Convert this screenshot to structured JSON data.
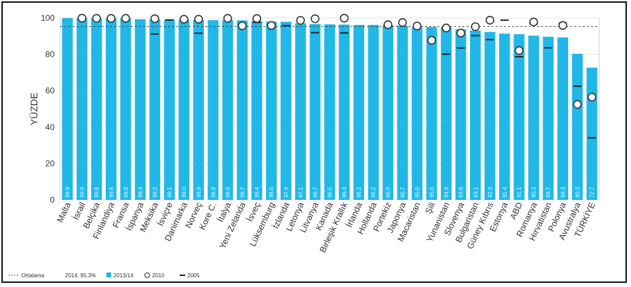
{
  "chart_data": {
    "type": "bar",
    "ylabel": "YÜZDE",
    "ylim": [
      0,
      100
    ],
    "yticks": [
      0,
      20,
      40,
      60,
      80,
      100
    ],
    "average_line": 95.3,
    "categories": [
      "Malta",
      "İsrail",
      "Belçika",
      "Finlandiya",
      "Fransa",
      "İspanya",
      "Meksika",
      "İsviçre",
      "Danimarka",
      "Norveç",
      "Kore C.",
      "İtalya",
      "Yeni Zelanda",
      "İsveç",
      "Lüksemburg",
      "İzlanda",
      "Letonya",
      "Litvanya",
      "Kanada",
      "Birleşik Krallık",
      "İrlanda",
      "Hollanda",
      "Portekiz",
      "Japonya",
      "Macaristan",
      "Şili",
      "Yunanistan",
      "Slovenya",
      "Bulgaristan",
      "Güney Kıbrıs",
      "Estonya",
      "ABD",
      "Romanya",
      "Hırvatistan",
      "Polonya",
      "Avustralya",
      "TÜRKİYE"
    ],
    "data_labels": [
      "99.9",
      "99.9",
      "99.8",
      "99.8",
      "99.8",
      "99.3",
      "99.2",
      "99.1",
      "99.0",
      "98.9",
      "98.8",
      "98.8",
      "98.7",
      "98.4",
      "98.0",
      "97.9",
      "97.1",
      "96.7",
      "96.5",
      "96.4",
      "96.2",
      "96.2",
      "96.0",
      "95.7",
      "95.0",
      "95.0",
      "94.9",
      "93.8",
      "93.1",
      "92.3",
      "91.4",
      "91.1",
      "90.3",
      "89.7",
      "89.3",
      "80.3",
      "72.7"
    ],
    "series": [
      {
        "name": "2013/14",
        "values": [
          99.9,
          99.9,
          99.8,
          99.8,
          99.8,
          99.3,
          99.2,
          99.1,
          99.0,
          98.9,
          98.8,
          98.8,
          98.7,
          98.4,
          98.0,
          97.9,
          97.1,
          96.7,
          96.5,
          96.4,
          96.2,
          96.2,
          96.0,
          95.7,
          95.0,
          95.0,
          94.9,
          93.8,
          93.1,
          92.3,
          91.4,
          91.1,
          90.3,
          89.7,
          89.3,
          80.3,
          72.7
        ]
      },
      {
        "name": "2010",
        "values": [
          null,
          99.9,
          99.8,
          99.8,
          99.8,
          null,
          99.6,
          null,
          99.3,
          99.3,
          null,
          99.8,
          95.7,
          99.7,
          95.9,
          null,
          98.7,
          99.6,
          null,
          99.9,
          null,
          null,
          96.3,
          97.5,
          95.6,
          87.7,
          94.5,
          91.7,
          95.2,
          98.8,
          null,
          82.1,
          97.8,
          null,
          95.9,
          52.5,
          56.5
        ]
      },
      {
        "name": "2005",
        "values": [
          null,
          null,
          null,
          null,
          null,
          null,
          91.2,
          98.9,
          null,
          91.6,
          null,
          null,
          null,
          97.6,
          null,
          95.8,
          null,
          91.9,
          null,
          91.8,
          null,
          null,
          null,
          null,
          null,
          null,
          80.1,
          83.5,
          90.3,
          88.1,
          98.8,
          78.7,
          96.7,
          83.6,
          97.2,
          62.5,
          34.1
        ]
      }
    ],
    "legend": {
      "position": "bottom-left",
      "average_label": "Ortalama",
      "average_value_label": "2014: 95.3%",
      "bar_label": "2013/14",
      "circle_label": "2010",
      "dash_label": "2005"
    },
    "colors": {
      "bar": "#21b8e8",
      "average": "#444444",
      "marker_fill": "#ffffff",
      "marker_stroke": "#333333",
      "dash": "#222222"
    },
    "grid": true
  }
}
